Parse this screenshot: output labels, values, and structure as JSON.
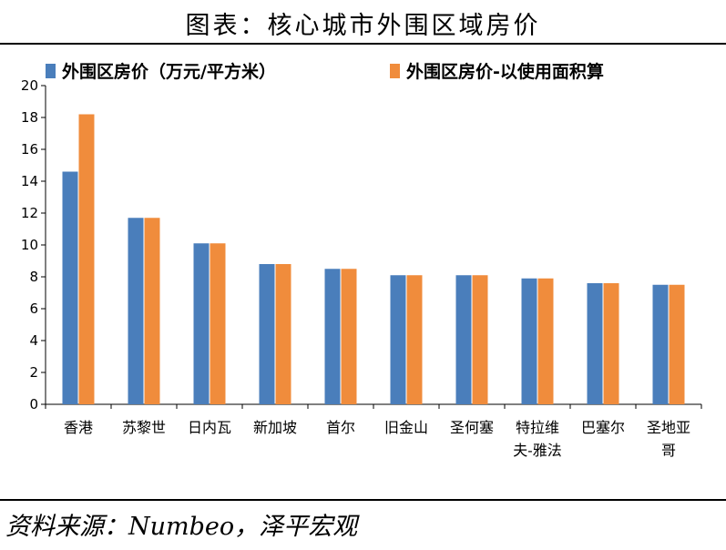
{
  "title": "图表：核心城市外围区域房价",
  "source": "资料来源：Numbeo，泽平宏观",
  "colors": {
    "series1": "#4a7ebb",
    "series2": "#f08c3c"
  },
  "chart_data": {
    "type": "bar",
    "categories": [
      "香港",
      "苏黎世",
      "日内瓦",
      "新加坡",
      "首尔",
      "旧金山",
      "圣何塞",
      "特拉维夫-雅法",
      "巴塞尔",
      "圣地亚哥"
    ],
    "category_lines": [
      [
        "香港"
      ],
      [
        "苏黎世"
      ],
      [
        "日内瓦"
      ],
      [
        "新加坡"
      ],
      [
        "首尔"
      ],
      [
        "旧金山"
      ],
      [
        "圣何塞"
      ],
      [
        "特拉维",
        "夫-雅法"
      ],
      [
        "巴塞尔"
      ],
      [
        "圣地亚",
        "哥"
      ]
    ],
    "series": [
      {
        "name": "外围区房价（万元/平方米）",
        "values": [
          14.6,
          11.7,
          10.1,
          8.8,
          8.5,
          8.1,
          8.1,
          7.9,
          7.6,
          7.5
        ]
      },
      {
        "name": "外围区房价-以使用面积算",
        "values": [
          18.2,
          11.7,
          10.1,
          8.8,
          8.5,
          8.1,
          8.1,
          7.9,
          7.6,
          7.5
        ]
      }
    ],
    "ylim": [
      0,
      20
    ],
    "yticks": [
      0,
      2,
      4,
      6,
      8,
      10,
      12,
      14,
      16,
      18,
      20
    ],
    "legend_position": "top",
    "grid": false
  }
}
